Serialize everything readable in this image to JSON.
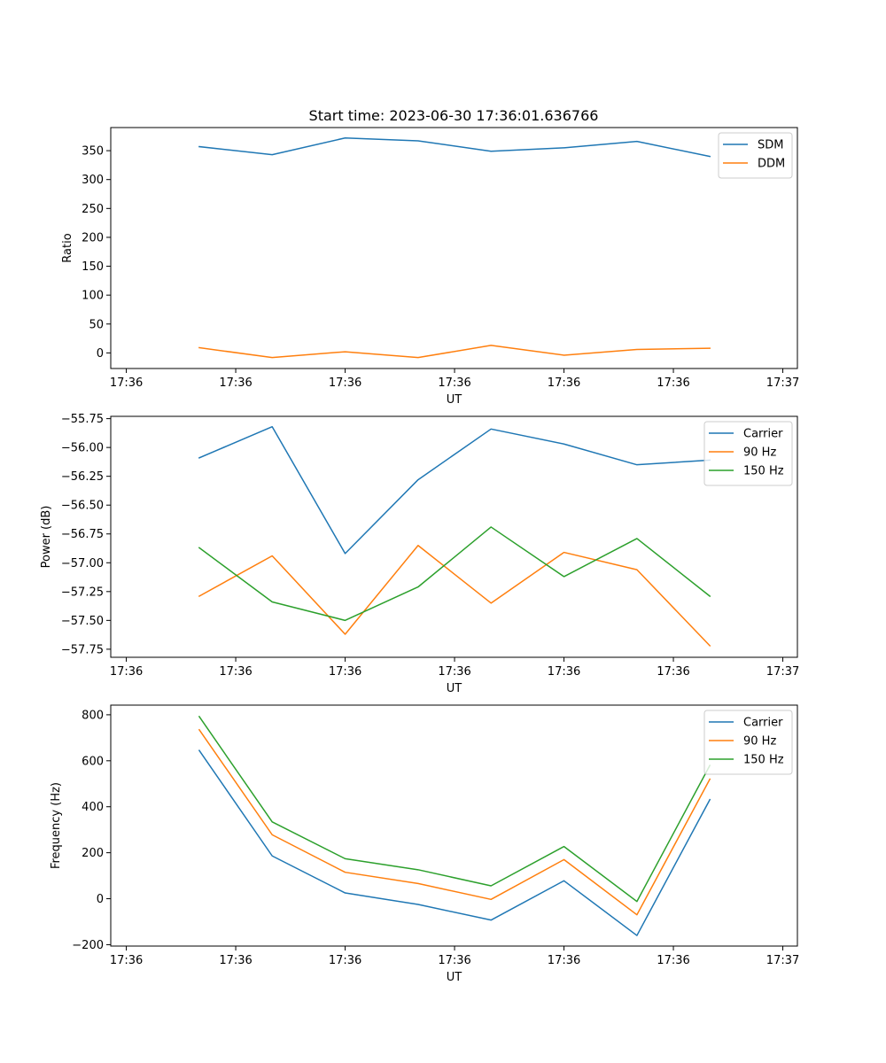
{
  "figure": {
    "title": "Start time: 2023-06-30 17:36:01.636766"
  },
  "chart_data": [
    {
      "type": "line",
      "xlabel": "UT",
      "ylabel": "Ratio",
      "x_tick_labels": [
        "17:36",
        "17:36",
        "17:36",
        "17:36",
        "17:36",
        "17:36",
        "17:37"
      ],
      "x": [
        0.375,
        0.75,
        1.125,
        1.5,
        1.875,
        2.25,
        2.625,
        3.0
      ],
      "xlim": [
        -0.08,
        3.45
      ],
      "ylim": [
        -27,
        390
      ],
      "y_ticks": [
        0,
        50,
        100,
        150,
        200,
        250,
        300,
        350
      ],
      "legend_position": "upper right",
      "series": [
        {
          "name": "SDM",
          "color": "#1f77b4",
          "values": [
            357,
            343,
            372,
            367,
            349,
            355,
            366,
            340
          ]
        },
        {
          "name": "DDM",
          "color": "#ff7f0e",
          "values": [
            9,
            -8,
            2,
            -8,
            13,
            -4,
            6,
            8
          ]
        }
      ]
    },
    {
      "type": "line",
      "xlabel": "UT",
      "ylabel": "Power (dB)",
      "x_tick_labels": [
        "17:36",
        "17:36",
        "17:36",
        "17:36",
        "17:36",
        "17:36",
        "17:37"
      ],
      "x": [
        0.375,
        0.75,
        1.125,
        1.5,
        1.875,
        2.25,
        2.625,
        3.0
      ],
      "xlim": [
        -0.08,
        3.45
      ],
      "ylim": [
        -57.82,
        -55.73
      ],
      "y_ticks": [
        -57.75,
        -57.5,
        -57.25,
        -57.0,
        -56.75,
        -56.5,
        -56.25,
        -56.0,
        -55.75
      ],
      "y_tick_labels": [
        "−57.75",
        "−57.50",
        "−57.25",
        "−57.00",
        "−56.75",
        "−56.50",
        "−56.25",
        "−56.00",
        "−55.75"
      ],
      "legend_position": "upper right",
      "series": [
        {
          "name": "Carrier",
          "color": "#1f77b4",
          "values": [
            -56.09,
            -55.82,
            -56.92,
            -56.28,
            -55.84,
            -55.97,
            -56.15,
            -56.11
          ]
        },
        {
          "name": "90 Hz",
          "color": "#ff7f0e",
          "values": [
            -57.29,
            -56.94,
            -57.62,
            -56.85,
            -57.35,
            -56.91,
            -57.06,
            -57.72
          ]
        },
        {
          "name": "150 Hz",
          "color": "#2ca02c",
          "values": [
            -56.87,
            -57.34,
            -57.5,
            -57.21,
            -56.69,
            -57.12,
            -56.79,
            -57.29
          ]
        }
      ]
    },
    {
      "type": "line",
      "xlabel": "UT",
      "ylabel": "Frequency (Hz)",
      "x_tick_labels": [
        "17:36",
        "17:36",
        "17:36",
        "17:36",
        "17:36",
        "17:36",
        "17:37"
      ],
      "x": [
        0.375,
        0.75,
        1.125,
        1.5,
        1.875,
        2.25,
        2.625,
        3.0
      ],
      "xlim": [
        -0.08,
        3.45
      ],
      "ylim": [
        -206,
        842
      ],
      "y_ticks": [
        -200,
        0,
        200,
        400,
        600,
        800
      ],
      "y_tick_labels": [
        "−200",
        "0",
        "200",
        "400",
        "600",
        "800"
      ],
      "legend_position": "upper right",
      "series": [
        {
          "name": "Carrier",
          "color": "#1f77b4",
          "values": [
            645,
            186,
            25,
            -25,
            -93,
            78,
            -160,
            431
          ]
        },
        {
          "name": "90 Hz",
          "color": "#ff7f0e",
          "values": [
            735,
            278,
            115,
            66,
            -3,
            170,
            -70,
            520
          ]
        },
        {
          "name": "150 Hz",
          "color": "#2ca02c",
          "values": [
            792,
            334,
            174,
            126,
            56,
            227,
            -12,
            580
          ]
        }
      ]
    }
  ]
}
